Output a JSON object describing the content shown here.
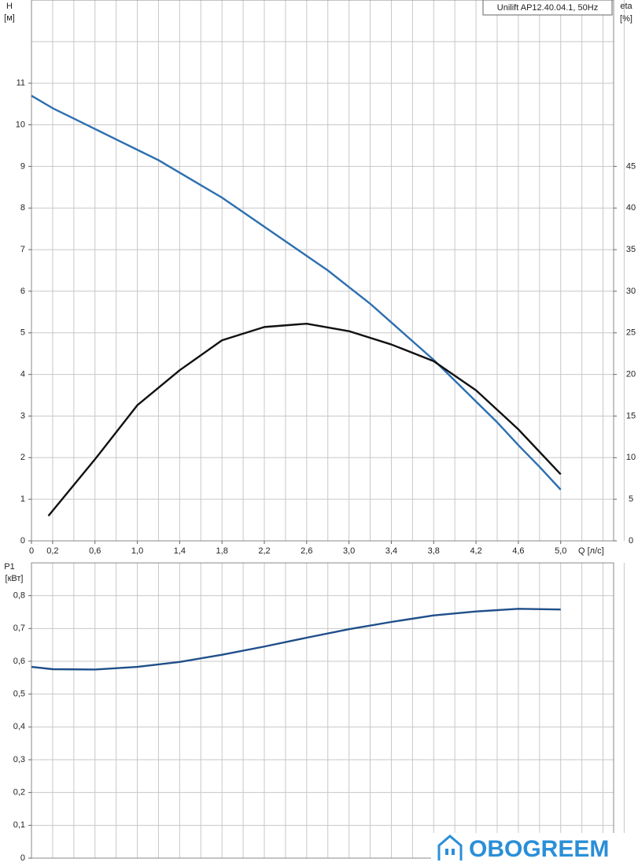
{
  "chart_data": [
    {
      "type": "line",
      "title": "Unilift AP12.40.04.1, 50Hz",
      "ylabel": "H",
      "yunit": "[м]",
      "y2label": "eta",
      "y2unit": "[%]",
      "xlabel": "Q [л/с]",
      "xlim": [
        0,
        5.5
      ],
      "ylim": [
        0,
        13
      ],
      "y2lim": [
        0,
        65
      ],
      "xticks": [
        0,
        {
          "value": 0.2,
          "label": "0,2"
        },
        {
          "value": 0.6,
          "label": "0,6"
        },
        {
          "value": 1.0,
          "label": "1,0"
        },
        {
          "value": 1.4,
          "label": "1,4"
        },
        {
          "value": 1.8,
          "label": "1,8"
        },
        {
          "value": 2.2,
          "label": "2,2"
        },
        {
          "value": 2.6,
          "label": "2,6"
        },
        {
          "value": 3.0,
          "label": "3,0"
        },
        {
          "value": 3.4,
          "label": "3,4"
        },
        {
          "value": 3.8,
          "label": "3,8"
        },
        {
          "value": 4.2,
          "label": "4,2"
        },
        {
          "value": 4.6,
          "label": "4,6"
        },
        {
          "value": 5.0,
          "label": "5,0"
        }
      ],
      "yticks": [
        0,
        1,
        2,
        3,
        4,
        5,
        6,
        7,
        8,
        9,
        10,
        11
      ],
      "y2ticks": [
        0,
        5,
        10,
        15,
        20,
        25,
        30,
        35,
        40,
        45
      ],
      "grid": {
        "x_step": 0.2,
        "y_step": 1
      },
      "series": [
        {
          "color": "#2c6fb0",
          "x": [
            0,
            0.2,
            0.4,
            0.6,
            0.8,
            1.0,
            1.2,
            1.4,
            1.6,
            1.8,
            2.0,
            2.2,
            2.4,
            2.6,
            2.8,
            3.0,
            3.2,
            3.4,
            3.6,
            3.8,
            4.0,
            4.2,
            4.4,
            4.6,
            4.8,
            5.0
          ],
          "values": [
            10.7,
            10.4,
            10.15,
            9.9,
            9.65,
            9.4,
            9.15,
            8.85,
            8.55,
            8.25,
            7.9,
            7.55,
            7.2,
            6.85,
            6.5,
            6.1,
            5.7,
            5.25,
            4.8,
            4.35,
            3.85,
            3.35,
            2.85,
            2.3,
            1.78,
            1.23
          ]
        },
        {
          "color": "#111111",
          "axis": "y2",
          "x": [
            0.16,
            0.6,
            1.0,
            1.4,
            1.8,
            2.2,
            2.6,
            3.0,
            3.4,
            3.8,
            4.2,
            4.6,
            5.0
          ],
          "values": [
            3,
            9.8,
            16.3,
            20.5,
            24.1,
            25.7,
            26.1,
            25.2,
            23.6,
            21.6,
            18.1,
            13.4,
            8.0
          ]
        }
      ]
    },
    {
      "type": "line",
      "ylabel": "P1",
      "yunit": "[кВт]",
      "xlim": [
        0,
        5.5
      ],
      "ylim": [
        0,
        0.9
      ],
      "yticks": [
        0,
        {
          "value": 0.1,
          "label": "0,1"
        },
        {
          "value": 0.2,
          "label": "0,2"
        },
        {
          "value": 0.3,
          "label": "0,3"
        },
        {
          "value": 0.4,
          "label": "0,4"
        },
        {
          "value": 0.5,
          "label": "0,5"
        },
        {
          "value": 0.6,
          "label": "0,6"
        },
        {
          "value": 0.7,
          "label": "0,7"
        },
        {
          "value": 0.8,
          "label": "0,8"
        }
      ],
      "grid": {
        "x_step": 0.2,
        "y_step": 0.1
      },
      "series": [
        {
          "color": "#1f4f8a",
          "x": [
            0,
            0.2,
            0.6,
            1.0,
            1.4,
            1.8,
            2.2,
            2.6,
            3.0,
            3.4,
            3.8,
            4.2,
            4.6,
            5.0
          ],
          "values": [
            0.583,
            0.576,
            0.575,
            0.583,
            0.598,
            0.62,
            0.645,
            0.672,
            0.698,
            0.72,
            0.74,
            0.752,
            0.76,
            0.758
          ]
        }
      ]
    }
  ],
  "watermark": "OBOGREEM"
}
